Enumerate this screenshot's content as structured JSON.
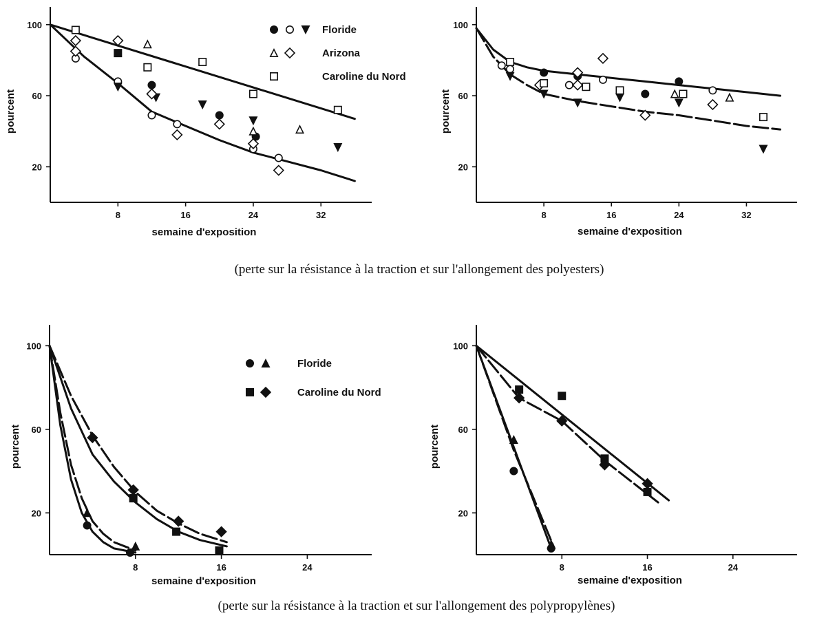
{
  "captions": {
    "polyesters": "(perte sur la résistance à la traction et sur l'allongement des polyesters)",
    "polypropylenes": "(perte sur la résistance à la traction et sur l'allongement des polypropylènes)"
  },
  "chart_data": [
    {
      "id": "polyester-left",
      "type": "scatter",
      "xlabel": "semaine d'exposition",
      "ylabel": "pourcent",
      "xlim": [
        0,
        38
      ],
      "ylim": [
        0,
        110
      ],
      "xticks": [
        "8",
        "16",
        "24",
        "32"
      ],
      "yticks": [
        "20",
        "60",
        "100"
      ],
      "legend": [
        {
          "label": "Floride",
          "markers": [
            "circle-filled",
            "circle-open",
            "triangle-down-filled"
          ]
        },
        {
          "label": "Arizona",
          "markers": [
            "triangle-open",
            "diamond-open"
          ]
        },
        {
          "label": "Caroline du Nord",
          "markers": [
            "square-open"
          ]
        }
      ],
      "series": [
        {
          "marker": "circle-filled",
          "points": [
            [
              12,
              66
            ],
            [
              20,
              49
            ],
            [
              24.3,
              37
            ]
          ]
        },
        {
          "marker": "circle-open",
          "points": [
            [
              3,
              81
            ],
            [
              8,
              68
            ],
            [
              12,
              49
            ],
            [
              15,
              44
            ],
            [
              24,
              30
            ],
            [
              27,
              25
            ]
          ]
        },
        {
          "marker": "triangle-down-filled",
          "points": [
            [
              8,
              65
            ],
            [
              12.5,
              59
            ],
            [
              18,
              55
            ],
            [
              24,
              46
            ],
            [
              34,
              31
            ]
          ]
        },
        {
          "marker": "triangle-open",
          "points": [
            [
              11.5,
              89
            ],
            [
              24,
              40
            ],
            [
              29.5,
              41
            ]
          ]
        },
        {
          "marker": "diamond-open",
          "points": [
            [
              3,
              85
            ],
            [
              3,
              91
            ],
            [
              8,
              91
            ],
            [
              12,
              61
            ],
            [
              15,
              38
            ],
            [
              20,
              44
            ],
            [
              24,
              33
            ],
            [
              27,
              18
            ]
          ]
        },
        {
          "marker": "square-filled",
          "points": [
            [
              8,
              84
            ]
          ]
        },
        {
          "marker": "square-open",
          "points": [
            [
              3,
              97
            ],
            [
              11.5,
              76
            ],
            [
              18,
              79
            ],
            [
              24,
              61
            ],
            [
              34,
              52
            ]
          ]
        }
      ],
      "curves": [
        {
          "style": "solid",
          "points": [
            [
              0,
              100
            ],
            [
              36,
              47
            ]
          ]
        },
        {
          "style": "solid",
          "points": [
            [
              0,
              100
            ],
            [
              4,
              82
            ],
            [
              8,
              67
            ],
            [
              12,
              51
            ],
            [
              16,
              43
            ],
            [
              20,
              35
            ],
            [
              24,
              28
            ],
            [
              28,
              23
            ],
            [
              32,
              18
            ],
            [
              36,
              12
            ]
          ]
        }
      ]
    },
    {
      "id": "polyester-right",
      "type": "scatter",
      "xlabel": "semaine d'exposition",
      "ylabel": "pourcent",
      "xlim": [
        0,
        38
      ],
      "ylim": [
        0,
        110
      ],
      "xticks": [
        "8",
        "16",
        "24",
        "32"
      ],
      "yticks": [
        "20",
        "60",
        "100"
      ],
      "series": [
        {
          "marker": "circle-filled",
          "points": [
            [
              8,
              73
            ],
            [
              12,
              71
            ],
            [
              20,
              61
            ],
            [
              24,
              68
            ]
          ]
        },
        {
          "marker": "circle-open",
          "points": [
            [
              3,
              77
            ],
            [
              4,
              75
            ],
            [
              11,
              66
            ],
            [
              15,
              69
            ],
            [
              28,
              63
            ]
          ]
        },
        {
          "marker": "triangle-down-filled",
          "points": [
            [
              4,
              71
            ],
            [
              8,
              61
            ],
            [
              12,
              56
            ],
            [
              17,
              59
            ],
            [
              24,
              56
            ],
            [
              34,
              30
            ]
          ]
        },
        {
          "marker": "triangle-open",
          "points": [
            [
              23.5,
              61
            ],
            [
              30,
              59
            ]
          ]
        },
        {
          "marker": "diamond-open",
          "points": [
            [
              7.5,
              66
            ],
            [
              12,
              73
            ],
            [
              12,
              66
            ],
            [
              15,
              81
            ],
            [
              20,
              49
            ],
            [
              28,
              55
            ]
          ]
        },
        {
          "marker": "square-open",
          "points": [
            [
              4,
              79
            ],
            [
              8,
              67
            ],
            [
              13,
              65
            ],
            [
              17,
              63
            ],
            [
              24.5,
              61
            ],
            [
              34,
              48
            ]
          ]
        }
      ],
      "curves": [
        {
          "style": "solid",
          "points": [
            [
              0,
              98
            ],
            [
              2,
              86
            ],
            [
              4,
              79
            ],
            [
              6,
              76
            ],
            [
              8,
              74
            ],
            [
              12,
              72
            ],
            [
              16,
              70
            ],
            [
              20,
              68
            ],
            [
              24,
              66
            ],
            [
              28,
              64
            ],
            [
              32,
              62
            ],
            [
              36,
              60
            ]
          ]
        },
        {
          "style": "dashed",
          "points": [
            [
              0,
              98
            ],
            [
              2,
              82
            ],
            [
              4,
              72
            ],
            [
              6,
              66
            ],
            [
              8,
              61
            ],
            [
              12,
              57
            ],
            [
              16,
              54
            ],
            [
              20,
              51
            ],
            [
              24,
              49
            ],
            [
              28,
              46
            ],
            [
              32,
              43
            ],
            [
              36,
              41
            ]
          ]
        }
      ]
    },
    {
      "id": "polypropylene-left",
      "type": "scatter",
      "xlabel": "semaine d'exposition",
      "ylabel": "pourcent",
      "xlim": [
        0,
        30
      ],
      "ylim": [
        0,
        110
      ],
      "xticks": [
        "8",
        "16",
        "24"
      ],
      "yticks": [
        "20",
        "60",
        "100"
      ],
      "legend": [
        {
          "label": "Floride",
          "markers": [
            "circle-filled",
            "triangle-filled"
          ]
        },
        {
          "label": "Caroline du Nord",
          "markers": [
            "square-filled",
            "diamond-filled"
          ]
        }
      ],
      "series": [
        {
          "marker": "circle-filled",
          "points": [
            [
              3.5,
              14
            ],
            [
              7.5,
              1
            ]
          ]
        },
        {
          "marker": "triangle-filled",
          "points": [
            [
              3.5,
              20
            ],
            [
              8,
              4
            ]
          ]
        },
        {
          "marker": "square-filled",
          "points": [
            [
              7.8,
              27
            ],
            [
              11.8,
              11
            ],
            [
              15.8,
              2
            ]
          ]
        },
        {
          "marker": "diamond-filled",
          "points": [
            [
              4,
              56
            ],
            [
              7.8,
              31
            ],
            [
              12,
              16
            ],
            [
              16,
              11
            ]
          ]
        }
      ],
      "curves": [
        {
          "style": "solid",
          "points": [
            [
              0,
              100
            ],
            [
              1,
              62
            ],
            [
              2,
              36
            ],
            [
              3,
              20
            ],
            [
              4,
              11
            ],
            [
              5,
              6
            ],
            [
              6,
              3
            ],
            [
              8,
              1
            ]
          ]
        },
        {
          "style": "dashed",
          "points": [
            [
              0,
              100
            ],
            [
              1,
              68
            ],
            [
              2,
              43
            ],
            [
              3,
              27
            ],
            [
              4,
              16
            ],
            [
              5,
              10
            ],
            [
              6,
              6
            ],
            [
              8,
              2
            ]
          ]
        },
        {
          "style": "solid",
          "points": [
            [
              0,
              100
            ],
            [
              2,
              70
            ],
            [
              4,
              48
            ],
            [
              6,
              35
            ],
            [
              8,
              25
            ],
            [
              10,
              17
            ],
            [
              12,
              11
            ],
            [
              14,
              7
            ],
            [
              16.5,
              4
            ]
          ]
        },
        {
          "style": "dashed",
          "points": [
            [
              0,
              100
            ],
            [
              2,
              76
            ],
            [
              4,
              57
            ],
            [
              6,
              42
            ],
            [
              8,
              30
            ],
            [
              10,
              21
            ],
            [
              12,
              15
            ],
            [
              14,
              10
            ],
            [
              16.5,
              6
            ]
          ]
        }
      ]
    },
    {
      "id": "polypropylene-right",
      "type": "scatter",
      "xlabel": "semaine d'exposition",
      "ylabel": "pourcent",
      "xlim": [
        0,
        30
      ],
      "ylim": [
        0,
        110
      ],
      "xticks": [
        "8",
        "16",
        "24"
      ],
      "yticks": [
        "20",
        "60",
        "100"
      ],
      "series": [
        {
          "marker": "circle-filled",
          "points": [
            [
              3.5,
              40
            ],
            [
              7,
              3
            ]
          ]
        },
        {
          "marker": "triangle-filled",
          "points": [
            [
              3.5,
              55
            ],
            [
              7,
              5
            ]
          ]
        },
        {
          "marker": "square-filled",
          "points": [
            [
              4,
              79
            ],
            [
              8,
              76
            ],
            [
              12,
              46
            ],
            [
              16,
              30
            ]
          ]
        },
        {
          "marker": "diamond-filled",
          "points": [
            [
              4,
              75
            ],
            [
              8,
              64
            ],
            [
              12,
              43
            ],
            [
              16,
              34
            ]
          ]
        }
      ],
      "curves": [
        {
          "style": "solid",
          "points": [
            [
              0,
              100
            ],
            [
              7,
              3
            ]
          ]
        },
        {
          "style": "dashed",
          "points": [
            [
              0,
              100
            ],
            [
              3.5,
              50
            ],
            [
              7.3,
              3
            ]
          ]
        },
        {
          "style": "solid",
          "points": [
            [
              0,
              100
            ],
            [
              18,
              26
            ]
          ]
        },
        {
          "style": "dashed",
          "points": [
            [
              0,
              100
            ],
            [
              4,
              75
            ],
            [
              8,
              64
            ],
            [
              12,
              45
            ],
            [
              17,
              25
            ]
          ]
        }
      ]
    }
  ]
}
